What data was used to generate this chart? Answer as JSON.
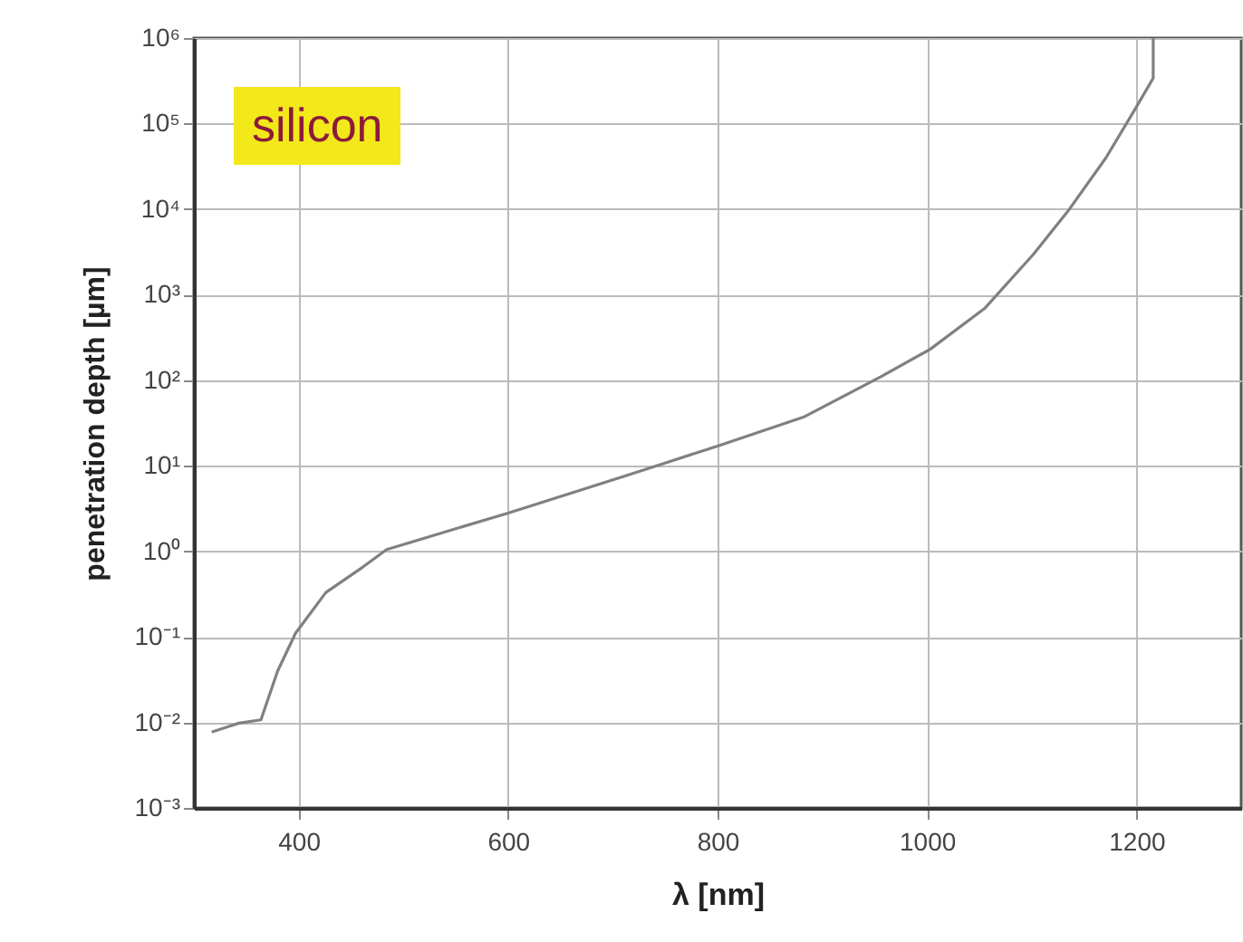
{
  "chart_data": {
    "type": "line",
    "xlabel": "λ [nm]",
    "ylabel": "penetration depth [µm]",
    "annotations": [
      "silicon"
    ],
    "log": "y",
    "grid": true,
    "marker": "none",
    "line_style": "solid",
    "xlim": [
      300,
      1300
    ],
    "xticks": [
      400,
      600,
      800,
      1000,
      1200
    ],
    "ylim": [
      0.001,
      1000000
    ],
    "yticks": [
      {
        "value": 0.001,
        "label": "10⁻³"
      },
      {
        "value": 0.01,
        "label": "10⁻²"
      },
      {
        "value": 0.1,
        "label": "10⁻¹"
      },
      {
        "value": 1,
        "label": "10⁰"
      },
      {
        "value": 10,
        "label": "10¹"
      },
      {
        "value": 100,
        "label": "10²"
      },
      {
        "value": 1000,
        "label": "10³"
      },
      {
        "value": 10000,
        "label": "10⁴"
      },
      {
        "value": 100000,
        "label": "10⁵"
      },
      {
        "value": 1000000,
        "label": "10⁶"
      }
    ],
    "series": [
      {
        "color": "#808080",
        "x": [
          317,
          343,
          364,
          380,
          397,
          426,
          461,
          484,
          600,
          709,
          800,
          882,
          956,
          1003,
          1055,
          1102,
          1136,
          1171,
          1199,
          1216,
          1216
        ],
        "values": [
          0.0077,
          0.0098,
          0.0107,
          0.04,
          0.11,
          0.33,
          0.65,
          1.05,
          2.8,
          7.4,
          17,
          37,
          110,
          230,
          690,
          3000,
          10000,
          40000,
          150000,
          340000,
          1000000
        ]
      }
    ]
  }
}
